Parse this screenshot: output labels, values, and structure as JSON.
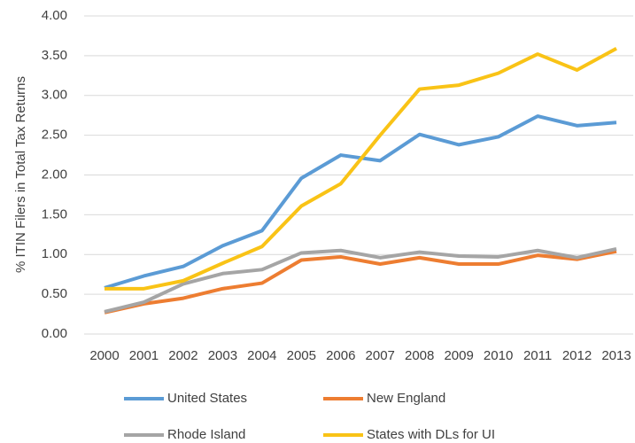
{
  "chart_data": {
    "type": "line",
    "y_label": "% ITIN Filers in Total Tax Returns",
    "categories": [
      "2000",
      "2001",
      "2002",
      "2003",
      "2004",
      "2005",
      "2006",
      "2007",
      "2008",
      "2009",
      "2010",
      "2011",
      "2012",
      "2013"
    ],
    "series": [
      {
        "name": "United States",
        "color": "#5b9bd5",
        "values": [
          0.58,
          0.73,
          0.85,
          1.11,
          1.3,
          1.96,
          2.25,
          2.18,
          2.51,
          2.38,
          2.48,
          2.74,
          2.62,
          2.66
        ]
      },
      {
        "name": "New England",
        "color": "#ed7d31",
        "values": [
          0.27,
          0.38,
          0.45,
          0.57,
          0.64,
          0.93,
          0.97,
          0.88,
          0.96,
          0.88,
          0.88,
          0.99,
          0.94,
          1.04
        ]
      },
      {
        "name": "Rhode Island",
        "color": "#a5a5a5",
        "values": [
          0.28,
          0.4,
          0.63,
          0.76,
          0.81,
          1.02,
          1.05,
          0.96,
          1.03,
          0.98,
          0.97,
          1.05,
          0.96,
          1.07
        ]
      },
      {
        "name": "States with DLs for UI",
        "color": "#f9c316",
        "values": [
          0.57,
          0.57,
          0.67,
          0.89,
          1.1,
          1.61,
          1.89,
          2.5,
          3.08,
          3.13,
          3.28,
          3.52,
          3.32,
          3.59
        ]
      }
    ],
    "ylim": [
      0,
      4
    ],
    "yticks": [
      {
        "value": 0,
        "label": "0.00"
      },
      {
        "value": 0.5,
        "label": "0.50"
      },
      {
        "value": 1,
        "label": "1.00"
      },
      {
        "value": 1.5,
        "label": "1.50"
      },
      {
        "value": 2,
        "label": "2.00"
      },
      {
        "value": 2.5,
        "label": "2.50"
      },
      {
        "value": 3,
        "label": "3.00"
      },
      {
        "value": 3.5,
        "label": "3.50"
      },
      {
        "value": 4,
        "label": "4.00"
      }
    ],
    "grid": true
  }
}
